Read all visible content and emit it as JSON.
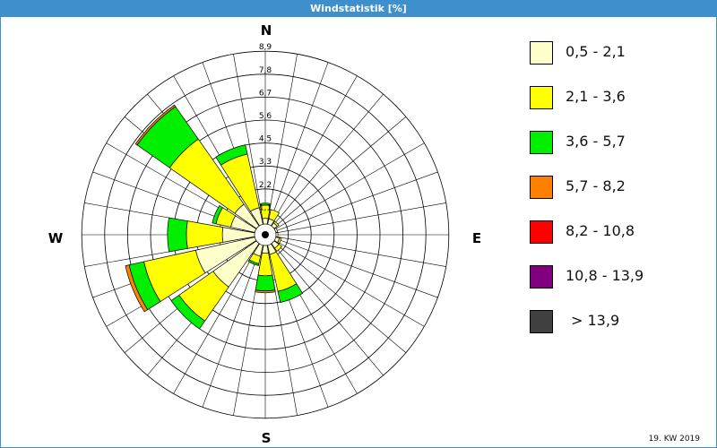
{
  "window": {
    "title": "Windstatistik [%]"
  },
  "footnote": "19. KW 2019",
  "chart_data": {
    "type": "windrose",
    "title": "Windstatistik [%]",
    "directions": [
      "N",
      "NNE",
      "NE",
      "ENE",
      "E",
      "ESE",
      "SE",
      "SSE",
      "S",
      "SSW",
      "SW",
      "WSW",
      "W",
      "WNW",
      "NW",
      "NNW"
    ],
    "compass_labels": {
      "north": "N",
      "east": "E",
      "south": "S",
      "west": "W"
    },
    "radial_ticks": [
      "1,1",
      "2,2",
      "3,3",
      "4,5",
      "5,6",
      "6,7",
      "7,8",
      "8,9"
    ],
    "radial_max": 8.9,
    "legend_title": "",
    "legend": [
      {
        "label": "0,5 - 2,1",
        "color": "#ffffcc"
      },
      {
        "label": "2,1 - 3,6",
        "color": "#ffff00"
      },
      {
        "label": "3,6 - 5,7",
        "color": "#00ee00"
      },
      {
        "label": "5,7 - 8,2",
        "color": "#ff8000"
      },
      {
        "label": "8,2 - 10,8",
        "color": "#ff0000"
      },
      {
        "label": "10,8 - 13,9",
        "color": "#800080"
      },
      {
        "label": "> 13,9",
        "color": "#404040"
      }
    ],
    "series": [
      {
        "name": "0,5 - 2,1",
        "values": [
          0.3,
          0.3,
          0.2,
          0.1,
          0.1,
          0.2,
          0.3,
          0.5,
          0.4,
          0.6,
          2.8,
          3.2,
          1.7,
          1.3,
          1.4,
          0.9
        ]
      },
      {
        "name": "2,1 - 3,6",
        "values": [
          0.7,
          0.5,
          0.1,
          0.0,
          0.0,
          0.1,
          0.2,
          2.0,
          1.2,
          0.4,
          2.2,
          2.8,
          1.9,
          0.8,
          4.2,
          2.9
        ]
      },
      {
        "name": "3,6 - 5,7",
        "values": [
          0.1,
          0.0,
          0.0,
          0.0,
          0.0,
          0.0,
          0.0,
          0.6,
          0.8,
          0.1,
          0.5,
          0.8,
          1.0,
          0.2,
          2.1,
          0.5
        ]
      },
      {
        "name": "5,7 - 8,2",
        "values": [
          0,
          0,
          0,
          0,
          0,
          0,
          0,
          0,
          0.1,
          0,
          0,
          0.2,
          0,
          0,
          0.1,
          0
        ]
      },
      {
        "name": "8,2 - 10,8",
        "values": [
          0,
          0,
          0,
          0,
          0,
          0,
          0,
          0,
          0,
          0,
          0,
          0,
          0,
          0,
          0,
          0
        ]
      },
      {
        "name": "10,8 - 13,9",
        "values": [
          0,
          0,
          0,
          0,
          0,
          0,
          0,
          0,
          0,
          0,
          0,
          0,
          0,
          0,
          0,
          0
        ]
      },
      {
        "name": "> 13,9",
        "values": [
          0,
          0,
          0,
          0,
          0,
          0,
          0,
          0,
          0,
          0,
          0,
          0,
          0,
          0,
          0,
          0
        ]
      }
    ]
  }
}
